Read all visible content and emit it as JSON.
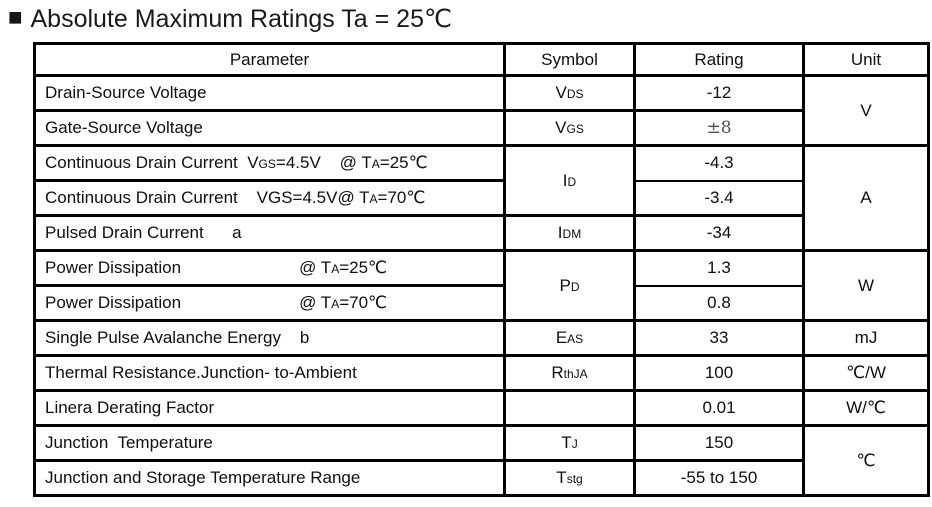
{
  "title": {
    "bullet": "■",
    "text": "Absolute Maximum Ratings Ta = 25℃"
  },
  "colors": {
    "text": "#111111",
    "border": "#000000",
    "rating_pm_gray": "#4f4f4f"
  },
  "table": {
    "headers": [
      "Parameter",
      "Symbol",
      "Rating",
      "Unit"
    ],
    "rows": [
      {
        "param": [
          {
            "t": "Drain-Source Voltage"
          }
        ],
        "symbol": {
          "rowspan": 1,
          "parts": [
            {
              "t": "V"
            },
            {
              "t": "DS",
              "sub": true
            }
          ]
        },
        "rating": {
          "text": "-12"
        },
        "unit": {
          "rowspan": 2,
          "text": "V"
        }
      },
      {
        "param": [
          {
            "t": "Gate-Source Voltage"
          }
        ],
        "symbol": {
          "rowspan": 1,
          "parts": [
            {
              "t": "V"
            },
            {
              "t": "GS",
              "sub": true
            }
          ]
        },
        "rating": {
          "text": "±8",
          "serif": true
        }
      },
      {
        "param": [
          {
            "t": "Continuous Drain Current  V"
          },
          {
            "t": "GS",
            "sub": true
          },
          {
            "t": "=4.5V    @ T"
          },
          {
            "t": "A",
            "sub": true
          },
          {
            "t": "=25℃"
          }
        ],
        "symbol": {
          "rowspan": 2,
          "parts": [
            {
              "t": "I"
            },
            {
              "t": "D",
              "sub": true
            }
          ]
        },
        "rating": {
          "text": "-4.3",
          "thin_bottom": true
        },
        "unit": {
          "rowspan": 3,
          "text": "A"
        }
      },
      {
        "param": [
          {
            "t": "Continuous Drain Current    VGS=4.5V@ T"
          },
          {
            "t": "A",
            "sub": true
          },
          {
            "t": "=70℃"
          }
        ],
        "rating": {
          "text": "-3.4",
          "thin_top": true
        }
      },
      {
        "param": [
          {
            "t": "Pulsed Drain Current      a"
          }
        ],
        "symbol": {
          "rowspan": 1,
          "parts": [
            {
              "t": "I"
            },
            {
              "t": "DM",
              "sub": true
            }
          ]
        },
        "rating": {
          "text": "-34"
        }
      },
      {
        "param": [
          {
            "t": "Power Dissipation                         @ T"
          },
          {
            "t": "A",
            "sub": true
          },
          {
            "t": "=25℃"
          }
        ],
        "symbol": {
          "rowspan": 2,
          "parts": [
            {
              "t": "P"
            },
            {
              "t": "D",
              "sub": true
            }
          ]
        },
        "rating": {
          "text": "1.3",
          "thin_bottom": true
        },
        "unit": {
          "rowspan": 2,
          "text": "W"
        }
      },
      {
        "param": [
          {
            "t": "Power Dissipation                         @ T"
          },
          {
            "t": "A",
            "sub": true
          },
          {
            "t": "=70℃"
          }
        ],
        "rating": {
          "text": "0.8",
          "thin_top": true
        }
      },
      {
        "param": [
          {
            "t": "Single Pulse Avalanche Energy    b"
          }
        ],
        "symbol": {
          "rowspan": 1,
          "parts": [
            {
              "t": "E"
            },
            {
              "t": "AS",
              "sub": true
            }
          ]
        },
        "rating": {
          "text": "33"
        },
        "unit": {
          "rowspan": 1,
          "text": "mJ"
        }
      },
      {
        "param": [
          {
            "t": "Thermal Resistance.Junction- to-Ambient"
          }
        ],
        "symbol": {
          "rowspan": 1,
          "parts": [
            {
              "t": "R"
            },
            {
              "t": "thJA",
              "sub": true
            }
          ]
        },
        "rating": {
          "text": "100"
        },
        "unit": {
          "rowspan": 1,
          "text": "℃/W"
        }
      },
      {
        "param": [
          {
            "t": "Linera Derating Factor"
          }
        ],
        "symbol": {
          "rowspan": 1,
          "parts": []
        },
        "rating": {
          "text": "0.01"
        },
        "unit": {
          "rowspan": 1,
          "text": "W/℃"
        }
      },
      {
        "param": [
          {
            "t": "Junction  Temperature"
          }
        ],
        "symbol": {
          "rowspan": 1,
          "parts": [
            {
              "t": "T"
            },
            {
              "t": "J",
              "sub": true
            }
          ]
        },
        "rating": {
          "text": "150"
        },
        "unit": {
          "rowspan": 2,
          "text": "℃"
        }
      },
      {
        "param": [
          {
            "t": "Junction and Storage Temperature Range"
          }
        ],
        "symbol": {
          "rowspan": 1,
          "parts": [
            {
              "t": "T"
            },
            {
              "t": "stg",
              "sub": true
            }
          ]
        },
        "rating": {
          "text": "-55 to 150"
        }
      }
    ]
  }
}
